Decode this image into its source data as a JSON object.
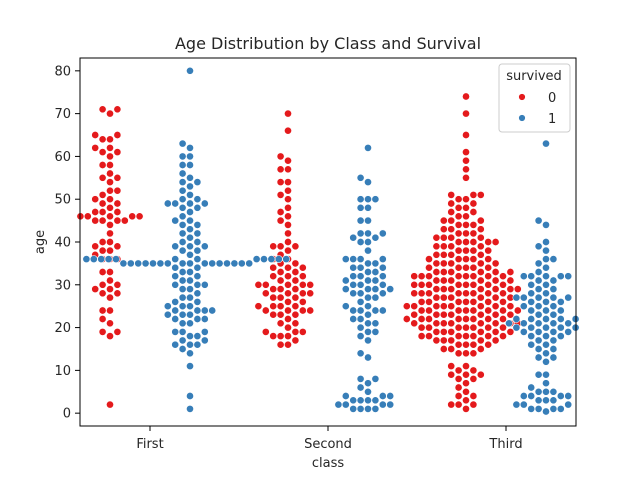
{
  "chart_data": {
    "type": "scatter",
    "subtype": "swarm",
    "title": "Age Distribution by Class and Survival",
    "xlabel": "class",
    "ylabel": "age",
    "categories": [
      "First",
      "Second",
      "Third"
    ],
    "yticks": [
      "0",
      "10",
      "20",
      "30",
      "40",
      "50",
      "60",
      "70",
      "80"
    ],
    "ylim": [
      -3,
      83
    ],
    "grid": false,
    "legend": {
      "title": "survived",
      "placement": "top-right",
      "entries": [
        {
          "label": "0",
          "color": "#e41a1c"
        },
        {
          "label": "1",
          "color": "#377eb8"
        }
      ]
    },
    "series": [
      {
        "name": "0",
        "color": "#e41a1c",
        "ages": {
          "First": [
            2,
            18,
            19,
            19,
            21,
            22,
            24,
            24,
            27,
            28,
            28,
            29,
            29,
            30,
            30,
            31,
            33,
            33,
            36,
            36,
            36,
            37,
            38,
            38,
            39,
            39,
            40,
            40,
            42,
            44,
            45,
            45,
            45,
            45,
            46,
            46,
            46,
            46,
            46,
            47,
            47,
            47,
            48,
            49,
            49,
            50,
            50,
            51,
            52,
            52,
            54,
            55,
            55,
            56,
            58,
            58,
            60,
            61,
            61,
            62,
            62,
            64,
            64,
            65,
            65,
            70,
            71,
            71
          ],
          "Second": [
            16,
            16,
            17,
            18,
            18,
            18,
            19,
            19,
            19,
            20,
            21,
            21,
            22,
            23,
            23,
            23,
            24,
            24,
            24,
            24,
            25,
            25,
            25,
            25,
            26,
            26,
            27,
            27,
            27,
            28,
            28,
            28,
            28,
            29,
            29,
            29,
            30,
            30,
            30,
            30,
            30,
            31,
            31,
            32,
            32,
            32,
            33,
            33,
            34,
            34,
            34,
            35,
            35,
            36,
            36,
            37,
            38,
            39,
            39,
            39,
            40,
            42,
            44,
            45,
            46,
            47,
            48,
            50,
            51,
            52,
            54,
            54,
            57,
            57,
            59,
            60,
            66,
            70
          ],
          "Third": [
            1,
            2,
            2,
            2,
            3,
            4,
            4,
            5,
            6,
            7,
            8,
            8,
            9,
            9,
            9,
            10,
            10,
            11,
            11,
            14,
            14,
            14,
            15,
            15,
            15,
            16,
            16,
            16,
            16,
            17,
            17,
            17,
            17,
            17,
            18,
            18,
            18,
            18,
            18,
            18,
            18,
            19,
            19,
            19,
            19,
            19,
            19,
            20,
            20,
            20,
            20,
            20,
            20,
            20,
            21,
            21,
            21,
            21,
            21,
            21,
            21,
            21,
            22,
            22,
            22,
            22,
            22,
            22,
            22,
            22,
            23,
            23,
            23,
            23,
            23,
            23,
            23,
            24,
            24,
            24,
            24,
            24,
            24,
            24,
            24,
            25,
            25,
            25,
            25,
            25,
            25,
            25,
            25,
            26,
            26,
            26,
            26,
            26,
            26,
            26,
            27,
            27,
            27,
            27,
            27,
            27,
            28,
            28,
            28,
            28,
            28,
            28,
            28,
            28,
            29,
            29,
            29,
            29,
            29,
            29,
            29,
            30,
            30,
            30,
            30,
            30,
            30,
            30,
            30,
            31,
            31,
            31,
            31,
            31,
            31,
            32,
            32,
            32,
            32,
            32,
            32,
            32,
            32,
            33,
            33,
            33,
            33,
            33,
            33,
            34,
            34,
            34,
            34,
            34,
            35,
            35,
            35,
            35,
            35,
            36,
            36,
            36,
            36,
            36,
            37,
            37,
            37,
            37,
            38,
            38,
            38,
            38,
            39,
            39,
            39,
            39,
            40,
            40,
            40,
            40,
            40,
            41,
            41,
            41,
            41,
            42,
            42,
            42,
            43,
            43,
            43,
            44,
            44,
            44,
            45,
            45,
            45,
            46,
            46,
            47,
            47,
            48,
            48,
            49,
            49,
            50,
            50,
            51,
            51,
            51,
            55,
            57,
            59,
            61,
            65,
            70,
            74
          ]
        }
      },
      {
        "name": "1",
        "color": "#377eb8",
        "ages": {
          "First": [
            1,
            4,
            11,
            14,
            15,
            16,
            16,
            16,
            17,
            17,
            18,
            18,
            19,
            19,
            19,
            21,
            21,
            22,
            22,
            22,
            23,
            23,
            23,
            24,
            24,
            24,
            24,
            25,
            25,
            25,
            26,
            26,
            27,
            27,
            28,
            29,
            29,
            30,
            30,
            30,
            31,
            31,
            32,
            32,
            33,
            33,
            34,
            34,
            35,
            35,
            35,
            35,
            35,
            35,
            35,
            35,
            35,
            35,
            35,
            35,
            35,
            35,
            35,
            35,
            36,
            36,
            36,
            36,
            36,
            36,
            36,
            36,
            36,
            36,
            36,
            36,
            37,
            38,
            38,
            39,
            39,
            39,
            40,
            40,
            41,
            42,
            42,
            43,
            44,
            44,
            45,
            45,
            46,
            47,
            48,
            48,
            49,
            49,
            49,
            49,
            50,
            50,
            51,
            52,
            53,
            54,
            54,
            55,
            56,
            58,
            58,
            60,
            60,
            62,
            63,
            80
          ],
          "Second": [
            1,
            1,
            1,
            1,
            2,
            2,
            2,
            2,
            3,
            3,
            3,
            3,
            4,
            4,
            4,
            5,
            6,
            7,
            8,
            8,
            13,
            14,
            17,
            18,
            19,
            19,
            20,
            21,
            21,
            22,
            22,
            23,
            24,
            24,
            24,
            24,
            25,
            25,
            26,
            27,
            27,
            28,
            28,
            28,
            29,
            29,
            29,
            29,
            30,
            30,
            30,
            31,
            31,
            31,
            32,
            32,
            32,
            33,
            33,
            34,
            34,
            34,
            35,
            35,
            36,
            36,
            36,
            36,
            38,
            40,
            40,
            41,
            41,
            42,
            42,
            42,
            45,
            45,
            48,
            48,
            50,
            50,
            50,
            54,
            55,
            62
          ],
          "Third": [
            0.4,
            1,
            1,
            1,
            1,
            2,
            2,
            2,
            3,
            3,
            3,
            4,
            4,
            4,
            4,
            5,
            5,
            5,
            6,
            7,
            9,
            9,
            12,
            13,
            13,
            14,
            15,
            15,
            16,
            16,
            17,
            17,
            18,
            18,
            18,
            19,
            19,
            19,
            19,
            20,
            20,
            20,
            20,
            20,
            21,
            21,
            21,
            21,
            21,
            22,
            22,
            22,
            22,
            22,
            23,
            23,
            24,
            24,
            24,
            25,
            25,
            25,
            26,
            26,
            26,
            27,
            27,
            27,
            27,
            27,
            28,
            28,
            29,
            29,
            30,
            30,
            31,
            31,
            32,
            32,
            32,
            32,
            32,
            33,
            34,
            35,
            36,
            36,
            38,
            39,
            40,
            44,
            45,
            63
          ]
        }
      }
    ]
  }
}
